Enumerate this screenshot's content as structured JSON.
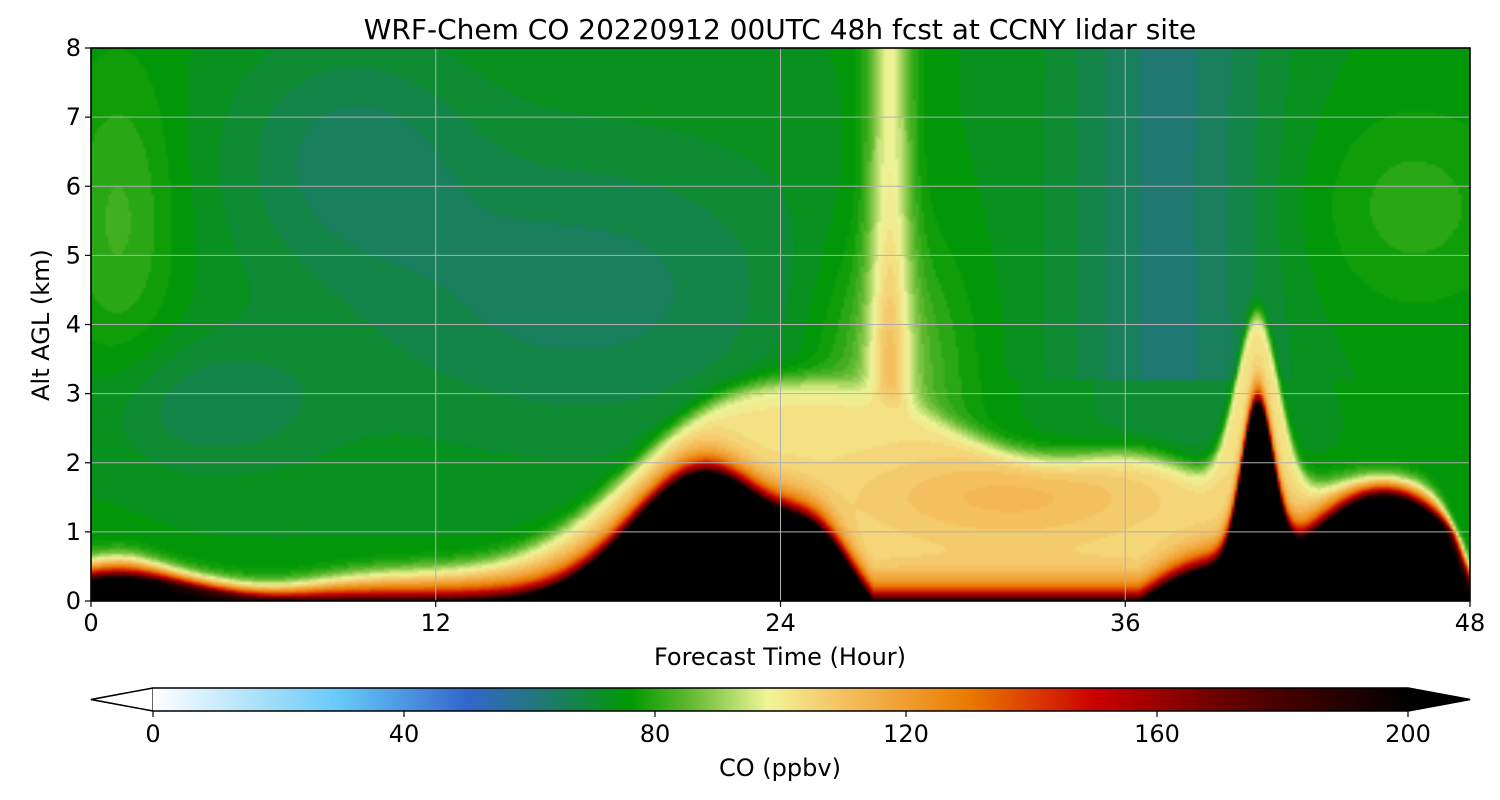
{
  "chart_data": {
    "type": "heatmap",
    "title": "WRF-Chem CO  20220912 00UTC 48h fcst at CCNY lidar site",
    "xlabel": "Forecast Time (Hour)",
    "ylabel": "Alt AGL (km)",
    "xlim": [
      0,
      48
    ],
    "ylim": [
      0,
      8
    ],
    "x_ticks": [
      0,
      12,
      24,
      36,
      48
    ],
    "y_ticks": [
      0,
      1,
      2,
      3,
      4,
      5,
      6,
      7,
      8
    ],
    "grid": true,
    "colorbar": {
      "label": "CO  (ppbv)",
      "range": [
        0,
        200
      ],
      "ticks": [
        0,
        40,
        80,
        120,
        160,
        200
      ],
      "extend": "both",
      "orientation": "horizontal",
      "colors": [
        {
          "value": 0,
          "color": "#ffffff"
        },
        {
          "value": 30,
          "color": "#66c8f8"
        },
        {
          "value": 50,
          "color": "#3366cc"
        },
        {
          "value": 63,
          "color": "#1e7a6e"
        },
        {
          "value": 76,
          "color": "#009900"
        },
        {
          "value": 86,
          "color": "#66bb33"
        },
        {
          "value": 98,
          "color": "#f2f59a"
        },
        {
          "value": 110,
          "color": "#f5c060"
        },
        {
          "value": 130,
          "color": "#ea7a00"
        },
        {
          "value": 150,
          "color": "#cc0000"
        },
        {
          "value": 170,
          "color": "#6a0000"
        },
        {
          "value": 200,
          "color": "#000000"
        }
      ]
    }
  }
}
